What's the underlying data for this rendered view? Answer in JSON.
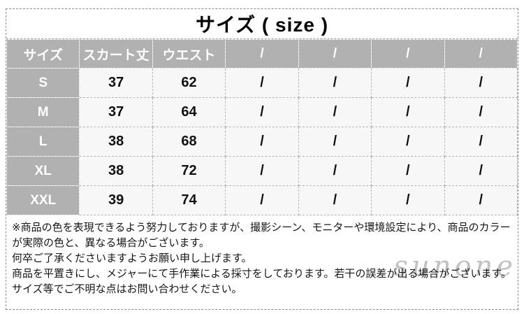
{
  "title": "サイズ ( size )",
  "table": {
    "headers": [
      "サイズ",
      "スカート丈",
      "ウエスト",
      "/",
      "/",
      "/",
      "/"
    ],
    "rows": [
      {
        "label": "S",
        "values": [
          "37",
          "62",
          "/",
          "/",
          "/",
          "/"
        ]
      },
      {
        "label": "M",
        "values": [
          "37",
          "64",
          "/",
          "/",
          "/",
          "/"
        ]
      },
      {
        "label": "L",
        "values": [
          "38",
          "68",
          "/",
          "/",
          "/",
          "/"
        ]
      },
      {
        "label": "XL",
        "values": [
          "38",
          "72",
          "/",
          "/",
          "/",
          "/"
        ]
      },
      {
        "label": "XXL",
        "values": [
          "39",
          "74",
          "/",
          "/",
          "/",
          "/"
        ]
      }
    ]
  },
  "notes": [
    "※商品の色を表現できるよう努力しておりますが、撮影シーン、モニターや環境設定により、商品のカラーが実際の色と、異なる場合がございます。",
    "何卒ご了承くださいますようお願い申し上げます。",
    "商品を平置きにし、メジャーにて手作業による採寸をしております。若干の誤差が出る場合がございます。サイズ等でご不明な点はお問い合わせください。"
  ],
  "watermark": "sunone",
  "colors": {
    "header_bg": "#b1b1b1",
    "header_text": "#ffffff",
    "cell_bg": "#f7f7f7",
    "text": "#111111",
    "border": "#8c8c8c",
    "watermark": "#8f8f8f"
  }
}
